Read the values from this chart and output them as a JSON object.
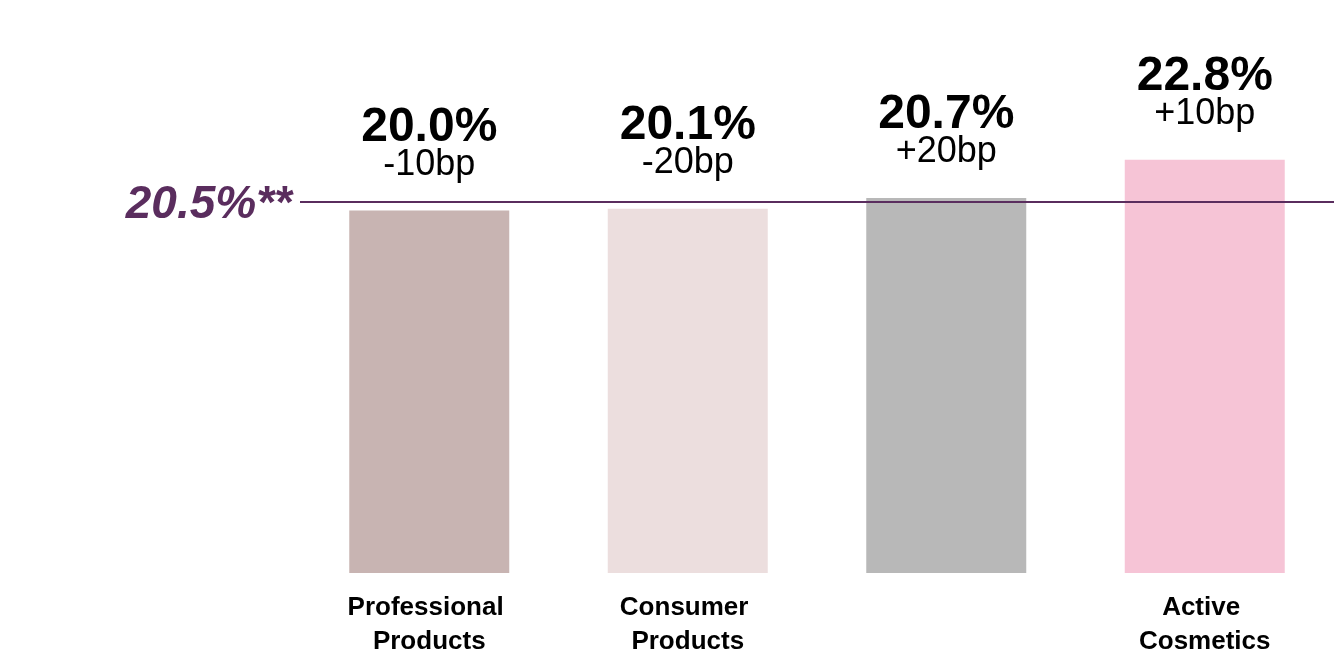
{
  "chart_data": {
    "type": "bar",
    "categories": [
      "Professional Products",
      "Consumer Products",
      null,
      "Active Cosmetics"
    ],
    "values": [
      20.0,
      20.1,
      20.7,
      22.8
    ],
    "colors": [
      "#c8b4b2",
      "#ecdede",
      "#b8b8b8",
      "#f6c4d6"
    ],
    "value_labels": [
      "20.0%",
      "20.1%",
      "20.7%",
      "22.8%"
    ],
    "annotations": [
      "-10bp",
      "-20bp",
      "+20bp",
      "+10bp"
    ],
    "ref_lines": [
      {
        "axis": "y",
        "value": 20.5,
        "label": "20.5%**",
        "color": "#5a2d5e"
      }
    ],
    "tick_labels": "x",
    "grid": false
  }
}
